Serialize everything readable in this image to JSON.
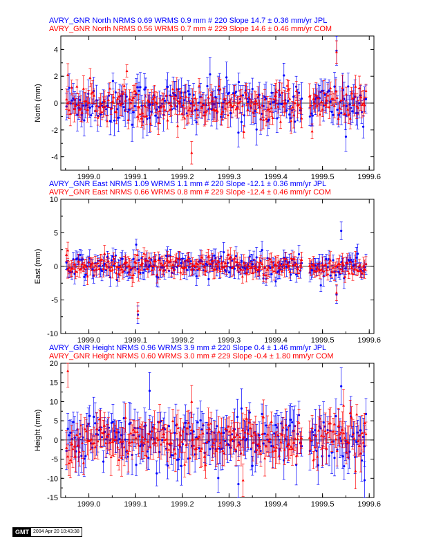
{
  "footer": {
    "logo": "GMT",
    "timestamp": "2004 Apr 20 10:43:38"
  },
  "colors": {
    "jpl": "#0000ff",
    "com": "#ff0000",
    "axis": "#000000"
  },
  "chart_data": [
    {
      "type": "scatter",
      "component": "north",
      "ylabel": "North (mm)",
      "xlim": [
        1998.94,
        1999.61
      ],
      "ylim": [
        -5,
        5
      ],
      "yticks": [
        -4,
        -2,
        0,
        2,
        4
      ],
      "xticks": [
        1999.0,
        1999.1,
        1999.2,
        1999.3,
        1999.4,
        1999.5,
        1999.6
      ],
      "xticklabels": [
        "1999.0",
        "1999.1",
        "1999.2",
        "1999.3",
        "1999.4",
        "1999.5",
        "1999.6"
      ],
      "title_lines": [
        "AVRY_GNR North NRMS 0.69 WRMS  0.9 mm # 220 Slope   14.7 ±  0.36 mm/yr JPL",
        "AVRY_GNR North NRMS 0.56 WRMS  0.7 mm # 229 Slope   14.6 ±  0.46 mm/yr COM"
      ],
      "series": [
        {
          "name": "JPL",
          "count": 220,
          "nrms": 0.69,
          "wrms_mm": 0.9,
          "slope_mm_yr": 14.7,
          "slope_sigma": 0.36,
          "typical_sigma": 0.9,
          "outliers": [
            [
              1999.13,
              -1.1
            ],
            [
              1999.32,
              -2.2
            ],
            [
              1999.53,
              3.9
            ],
            [
              1999.55,
              -2.5
            ]
          ]
        },
        {
          "name": "COM",
          "count": 229,
          "nrms": 0.56,
          "wrms_mm": 0.7,
          "slope_mm_yr": 14.6,
          "slope_sigma": 0.46,
          "typical_sigma": 0.7,
          "outliers": [
            [
              1998.955,
              2.1
            ],
            [
              1999.22,
              -3.7
            ],
            [
              1999.19,
              -1.7
            ],
            [
              1999.53,
              3.8
            ]
          ]
        }
      ]
    },
    {
      "type": "scatter",
      "component": "east",
      "ylabel": "East (mm)",
      "xlim": [
        1998.94,
        1999.61
      ],
      "ylim": [
        -10,
        10
      ],
      "yticks": [
        -10,
        -5,
        0,
        5,
        10
      ],
      "xticks": [
        1999.0,
        1999.1,
        1999.2,
        1999.3,
        1999.4,
        1999.5,
        1999.6
      ],
      "xticklabels": [
        "1999.0",
        "1999.1",
        "1999.2",
        "1999.3",
        "1999.4",
        "1999.5",
        "1999.6"
      ],
      "title_lines": [
        "AVRY_GNR East NRMS 1.09 WRMS  1.1 mm # 220 Slope  -12.1 ±  0.36 mm/yr JPL",
        "AVRY_GNR East NRMS 0.66 WRMS  0.8 mm # 229 Slope  -12.4 ±  0.46 mm/yr COM"
      ],
      "series": [
        {
          "name": "JPL",
          "count": 220,
          "nrms": 1.09,
          "wrms_mm": 1.1,
          "slope_mm_yr": -12.1,
          "slope_sigma": 0.36,
          "typical_sigma": 1.1,
          "outliers": [
            [
              1999.105,
              -7.2
            ],
            [
              1999.54,
              5.3
            ],
            [
              1999.53,
              -4.2
            ]
          ]
        },
        {
          "name": "COM",
          "count": 229,
          "nrms": 0.66,
          "wrms_mm": 0.8,
          "slope_mm_yr": -12.4,
          "slope_sigma": 0.46,
          "typical_sigma": 1.0,
          "outliers": [
            [
              1999.105,
              -6.6
            ],
            [
              1999.53,
              -3.9
            ],
            [
              1998.955,
              2.4
            ]
          ]
        }
      ]
    },
    {
      "type": "scatter",
      "component": "height",
      "ylabel": "Height (mm)",
      "xlim": [
        1998.94,
        1999.61
      ],
      "ylim": [
        -15,
        20
      ],
      "yticks": [
        -15,
        -10,
        -5,
        0,
        5,
        10,
        15,
        20
      ],
      "xticks": [
        1999.0,
        1999.1,
        1999.2,
        1999.3,
        1999.4,
        1999.5,
        1999.6
      ],
      "xticklabels": [
        "1999.0",
        "1999.1",
        "1999.2",
        "1999.3",
        "1999.4",
        "1999.5",
        "1999.6"
      ],
      "title_lines": [
        "AVRY_GNR Height NRMS 0.96 WRMS  3.9 mm # 220 Slope    0.4 ±  1.46 mm/yr JPL",
        "AVRY_GNR Height NRMS 0.60 WRMS  3.0 mm # 229 Slope   -0.4 ±  1.80 mm/yr COM"
      ],
      "series": [
        {
          "name": "JPL",
          "count": 220,
          "nrms": 0.96,
          "wrms_mm": 3.9,
          "slope_mm_yr": 0.4,
          "slope_sigma": 1.46,
          "typical_sigma": 4.0,
          "outliers": [
            [
              1999.13,
              12.8
            ],
            [
              1999.54,
              14.0
            ],
            [
              1999.32,
              -11.5
            ],
            [
              1999.59,
              -10.5
            ]
          ]
        },
        {
          "name": "COM",
          "count": 229,
          "nrms": 0.6,
          "wrms_mm": 3.0,
          "slope_mm_yr": -0.4,
          "slope_sigma": 1.8,
          "typical_sigma": 3.5,
          "outliers": [
            [
              1998.955,
              18.0
            ],
            [
              1999.33,
              -10.5
            ],
            [
              1999.22,
              10.0
            ],
            [
              1999.545,
              9.0
            ]
          ]
        }
      ]
    }
  ]
}
